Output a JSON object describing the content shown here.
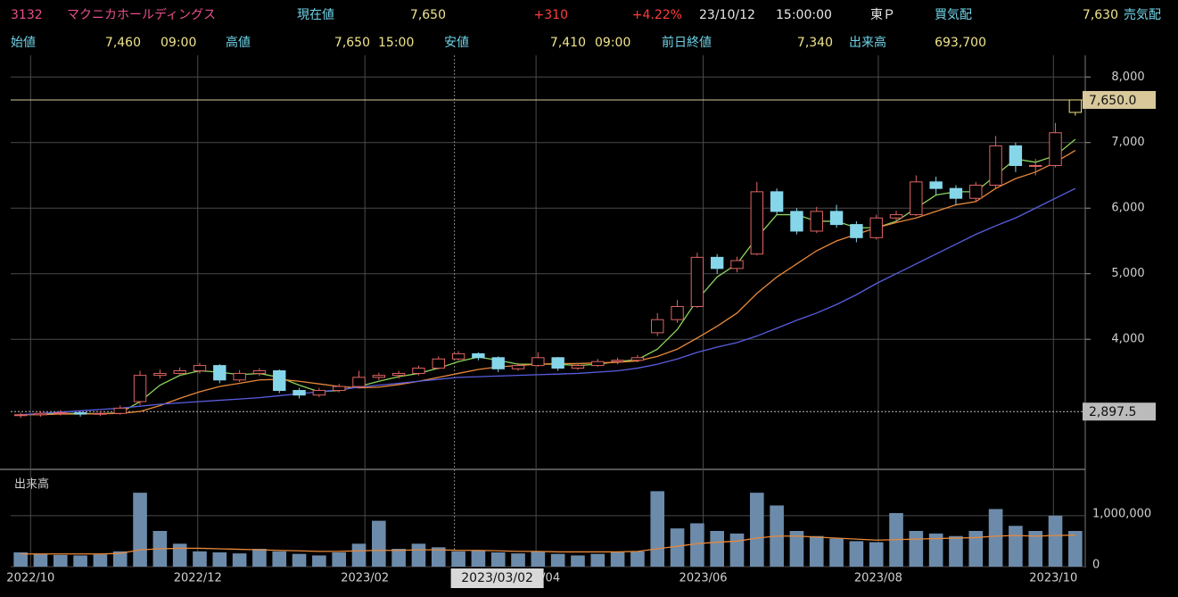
{
  "header": {
    "code": "3132",
    "name": "マクニカホールディングス",
    "current_label": "現在値",
    "current": "7,650",
    "change": "+310",
    "change_pct": "+4.22%",
    "date": "23/10/12",
    "time": "15:00:00",
    "market": "東Ｐ",
    "bid_label": "買気配",
    "bid": "7,630",
    "ask_label": "売気配",
    "open_label": "始値",
    "open": "7,460",
    "open_time": "09:00",
    "high_label": "高値",
    "high": "7,650",
    "high_time": "15:00",
    "low_label": "安値",
    "low": "7,410",
    "low_time": "09:00",
    "prev_close_label": "前日終値",
    "prev_close": "7,340",
    "volume_label": "出来高",
    "volume": "693,700"
  },
  "chart_data": {
    "type": "candlestick",
    "up_color": "#e06464",
    "down_color": "#86d6ea",
    "last_color": "#f3e27a",
    "grid": true,
    "xlim": [
      0,
      54
    ],
    "xticks": [
      {
        "value": 1,
        "label": "2022/10"
      },
      {
        "value": 9.4,
        "label": "2022/12"
      },
      {
        "value": 17.8,
        "label": "2023/02"
      },
      {
        "value": 26.4,
        "label": "2023/04"
      },
      {
        "value": 34.8,
        "label": "2023/06"
      },
      {
        "value": 43.6,
        "label": "2023/08"
      },
      {
        "value": 52.4,
        "label": "2023/10"
      }
    ],
    "ylim": [
      2030,
      8330
    ],
    "yticks": [
      {
        "value": 4000,
        "label": "4,000"
      },
      {
        "value": 5000,
        "label": "5,000"
      },
      {
        "value": 6000,
        "label": "6,000"
      },
      {
        "value": 7000,
        "label": "7,000"
      },
      {
        "value": 8000,
        "label": "8,000"
      }
    ],
    "candles": [
      [
        2840,
        2880,
        2800,
        2850
      ],
      [
        2850,
        2900,
        2820,
        2870
      ],
      [
        2870,
        2920,
        2840,
        2880
      ],
      [
        2880,
        2900,
        2820,
        2860
      ],
      [
        2860,
        2900,
        2830,
        2870
      ],
      [
        2870,
        2990,
        2850,
        2950
      ],
      [
        3050,
        3520,
        3000,
        3450
      ],
      [
        3450,
        3540,
        3400,
        3480
      ],
      [
        3480,
        3570,
        3440,
        3520
      ],
      [
        3520,
        3640,
        3480,
        3600
      ],
      [
        3600,
        3620,
        3330,
        3380
      ],
      [
        3380,
        3530,
        3350,
        3480
      ],
      [
        3480,
        3560,
        3440,
        3520
      ],
      [
        3520,
        3540,
        3180,
        3220
      ],
      [
        3220,
        3260,
        3100,
        3150
      ],
      [
        3150,
        3260,
        3120,
        3220
      ],
      [
        3220,
        3320,
        3190,
        3280
      ],
      [
        3280,
        3520,
        3260,
        3420
      ],
      [
        3420,
        3490,
        3380,
        3450
      ],
      [
        3450,
        3520,
        3400,
        3480
      ],
      [
        3480,
        3600,
        3450,
        3560
      ],
      [
        3560,
        3740,
        3540,
        3700
      ],
      [
        3700,
        3820,
        3680,
        3780
      ],
      [
        3780,
        3800,
        3680,
        3720
      ],
      [
        3720,
        3740,
        3500,
        3550
      ],
      [
        3550,
        3640,
        3520,
        3600
      ],
      [
        3600,
        3800,
        3580,
        3720
      ],
      [
        3720,
        3730,
        3520,
        3560
      ],
      [
        3560,
        3640,
        3530,
        3600
      ],
      [
        3600,
        3700,
        3580,
        3660
      ],
      [
        3660,
        3720,
        3620,
        3680
      ],
      [
        3680,
        3760,
        3650,
        3720
      ],
      [
        4100,
        4400,
        4050,
        4300
      ],
      [
        4300,
        4600,
        4250,
        4500
      ],
      [
        4500,
        5320,
        4480,
        5250
      ],
      [
        5250,
        5300,
        5000,
        5080
      ],
      [
        5080,
        5260,
        5020,
        5200
      ],
      [
        5300,
        6400,
        5280,
        6250
      ],
      [
        6250,
        6300,
        5900,
        5950
      ],
      [
        5950,
        6000,
        5600,
        5650
      ],
      [
        5650,
        6020,
        5620,
        5950
      ],
      [
        5950,
        6050,
        5700,
        5750
      ],
      [
        5750,
        5800,
        5480,
        5550
      ],
      [
        5550,
        5900,
        5520,
        5850
      ],
      [
        5850,
        5960,
        5780,
        5900
      ],
      [
        5900,
        6500,
        5880,
        6400
      ],
      [
        6400,
        6480,
        6200,
        6300
      ],
      [
        6300,
        6350,
        6050,
        6150
      ],
      [
        6150,
        6400,
        6100,
        6350
      ],
      [
        6350,
        7100,
        6300,
        6950
      ],
      [
        6950,
        7000,
        6550,
        6650
      ],
      [
        6650,
        6750,
        6500,
        6650
      ],
      [
        6650,
        7300,
        6620,
        7150
      ],
      [
        7460,
        7650,
        7410,
        7650
      ]
    ],
    "series": [
      {
        "color": "#8bd35a",
        "values": [
          2850,
          2860,
          2870,
          2870,
          2865,
          2880,
          3050,
          3300,
          3450,
          3520,
          3500,
          3460,
          3480,
          3420,
          3300,
          3200,
          3220,
          3280,
          3360,
          3430,
          3480,
          3560,
          3660,
          3730,
          3680,
          3620,
          3620,
          3620,
          3600,
          3620,
          3660,
          3690,
          3850,
          4150,
          4600,
          4950,
          5150,
          5550,
          5900,
          5900,
          5800,
          5800,
          5700,
          5700,
          5800,
          6000,
          6200,
          6250,
          6250,
          6500,
          6750,
          6700,
          6800,
          7050
        ]
      },
      {
        "color": "#e8893a",
        "values": [
          2850,
          2850,
          2860,
          2860,
          2865,
          2870,
          2900,
          2990,
          3100,
          3200,
          3280,
          3330,
          3380,
          3390,
          3360,
          3320,
          3280,
          3260,
          3270,
          3310,
          3360,
          3420,
          3480,
          3540,
          3580,
          3600,
          3620,
          3630,
          3630,
          3640,
          3650,
          3670,
          3740,
          3850,
          4020,
          4200,
          4400,
          4700,
          4950,
          5150,
          5350,
          5500,
          5600,
          5700,
          5780,
          5850,
          5950,
          6050,
          6100,
          6300,
          6450,
          6550,
          6700,
          6880
        ]
      },
      {
        "color": "#5a5ee0",
        "values": [
          2850,
          2870,
          2890,
          2910,
          2930,
          2950,
          2980,
          3010,
          3030,
          3050,
          3070,
          3090,
          3110,
          3140,
          3170,
          3200,
          3230,
          3270,
          3300,
          3330,
          3360,
          3390,
          3420,
          3430,
          3440,
          3450,
          3460,
          3470,
          3480,
          3500,
          3520,
          3560,
          3620,
          3700,
          3800,
          3880,
          3950,
          4050,
          4170,
          4290,
          4400,
          4530,
          4680,
          4850,
          5000,
          5150,
          5300,
          5450,
          5600,
          5730,
          5850,
          6000,
          6150,
          6300
        ]
      }
    ],
    "markers": [
      {
        "value": 7650,
        "label": "7,650.0",
        "color": "#d8c89a"
      },
      {
        "value": 2897.5,
        "label": "2,897.5",
        "color": "#bbbbbb"
      }
    ],
    "cursor": {
      "x": 22.3,
      "label": "2023/03/02"
    },
    "volume": {
      "title": "出来高",
      "color": "#6c8bab",
      "ylim": [
        0,
        1890000
      ],
      "yticks": [
        0,
        {
          "value": 1000000,
          "label": "1,000,000"
        }
      ],
      "values": [
        280000,
        250000,
        230000,
        220000,
        240000,
        300000,
        1450000,
        700000,
        450000,
        300000,
        280000,
        260000,
        350000,
        300000,
        250000,
        220000,
        280000,
        450000,
        900000,
        350000,
        450000,
        380000,
        300000,
        320000,
        280000,
        260000,
        300000,
        250000,
        220000,
        250000,
        280000,
        300000,
        1480000,
        750000,
        850000,
        700000,
        650000,
        1450000,
        1200000,
        700000,
        600000,
        550000,
        500000,
        480000,
        1050000,
        700000,
        650000,
        600000,
        700000,
        1130000,
        800000,
        700000,
        1000000,
        700000
      ],
      "ma": {
        "color": "#e8893a",
        "values": [
          250000,
          250000,
          250000,
          250000,
          250000,
          260000,
          330000,
          350000,
          360000,
          360000,
          350000,
          340000,
          330000,
          320000,
          310000,
          300000,
          300000,
          310000,
          320000,
          320000,
          330000,
          330000,
          320000,
          320000,
          310000,
          300000,
          300000,
          290000,
          290000,
          290000,
          290000,
          300000,
          350000,
          400000,
          450000,
          480000,
          500000,
          560000,
          600000,
          600000,
          580000,
          560000,
          540000,
          520000,
          530000,
          540000,
          550000,
          560000,
          570000,
          600000,
          610000,
          600000,
          610000,
          620000
        ]
      }
    }
  }
}
